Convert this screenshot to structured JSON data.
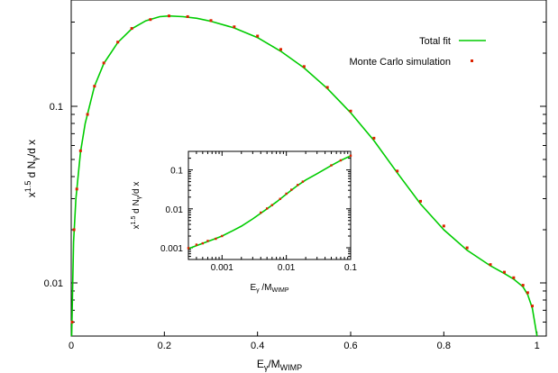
{
  "chart_data": [
    {
      "type": "line",
      "xlabel": "E",
      "xlabel_sub": "γ",
      "xlabel_rest": "/M",
      "xlabel_sub2": "WIMP",
      "ylabel_html": "x^1.5 d N_γ/d x",
      "ylabel_parts": [
        "x",
        "1.5",
        " d N",
        "γ",
        "/d x"
      ],
      "xscale": "linear",
      "yscale": "log",
      "xlim": [
        0,
        1.02
      ],
      "ylim": [
        0.005,
        0.4
      ],
      "xticks": [
        0,
        0.2,
        0.4,
        0.6,
        0.8,
        1
      ],
      "xtick_labels": [
        "0",
        "0.2",
        "0.4",
        "0.6",
        "0.8",
        "1"
      ],
      "yticks": [
        0.01,
        0.1
      ],
      "ytick_labels": [
        "0.01",
        "0.1"
      ],
      "legend_position": "top-right",
      "series": [
        {
          "name": "Total fit",
          "style": "line",
          "color": "#00cc00",
          "x": [
            0.001,
            0.005,
            0.01,
            0.02,
            0.03,
            0.05,
            0.07,
            0.1,
            0.13,
            0.16,
            0.19,
            0.21,
            0.24,
            0.27,
            0.3,
            0.35,
            0.4,
            0.45,
            0.5,
            0.55,
            0.6,
            0.65,
            0.7,
            0.75,
            0.8,
            0.85,
            0.9,
            0.93,
            0.95,
            0.97,
            0.98,
            0.99,
            0.995,
            1.0
          ],
          "y": [
            0.005,
            0.017,
            0.03,
            0.055,
            0.08,
            0.13,
            0.175,
            0.23,
            0.275,
            0.305,
            0.322,
            0.325,
            0.322,
            0.315,
            0.303,
            0.278,
            0.245,
            0.205,
            0.165,
            0.126,
            0.092,
            0.064,
            0.042,
            0.028,
            0.02,
            0.0153,
            0.0125,
            0.0113,
            0.0105,
            0.0095,
            0.0086,
            0.0072,
            0.006,
            0.005
          ]
        },
        {
          "name": "Monte Carlo simulation",
          "style": "points",
          "color": "#dd2200",
          "x": [
            0.002,
            0.006,
            0.012,
            0.02,
            0.035,
            0.05,
            0.07,
            0.1,
            0.13,
            0.17,
            0.21,
            0.25,
            0.3,
            0.35,
            0.4,
            0.45,
            0.5,
            0.55,
            0.6,
            0.65,
            0.7,
            0.75,
            0.8,
            0.85,
            0.9,
            0.93,
            0.95,
            0.97,
            0.98,
            0.99
          ],
          "y": [
            0.006,
            0.02,
            0.034,
            0.056,
            0.09,
            0.13,
            0.176,
            0.231,
            0.276,
            0.31,
            0.325,
            0.322,
            0.306,
            0.282,
            0.25,
            0.21,
            0.168,
            0.128,
            0.094,
            0.066,
            0.043,
            0.029,
            0.021,
            0.0158,
            0.0127,
            0.0115,
            0.0107,
            0.0097,
            0.0088,
            0.0074
          ]
        }
      ]
    },
    {
      "type": "line",
      "inset": true,
      "xlabel_parts": [
        "E",
        "γ",
        " /M",
        "WIMP"
      ],
      "ylabel_parts": [
        "x",
        "1.5",
        " d N",
        "γ",
        "/d x"
      ],
      "xscale": "log",
      "yscale": "log",
      "xlim": [
        0.0003,
        0.1
      ],
      "ylim": [
        0.0005,
        0.3
      ],
      "xticks": [
        0.001,
        0.01,
        0.1
      ],
      "xtick_labels": [
        "0.001",
        "0.01",
        "0.1"
      ],
      "yticks": [
        0.001,
        0.01,
        0.1
      ],
      "ytick_labels": [
        "0.001",
        "0.01",
        "0.1"
      ],
      "series": [
        {
          "name": "Total fit",
          "style": "line",
          "color": "#00cc00",
          "x": [
            0.0003,
            0.0005,
            0.0007,
            0.001,
            0.0015,
            0.002,
            0.003,
            0.005,
            0.007,
            0.01,
            0.015,
            0.02,
            0.03,
            0.05,
            0.07,
            0.1
          ],
          "y": [
            0.00095,
            0.0013,
            0.0016,
            0.002,
            0.0028,
            0.0036,
            0.0055,
            0.01,
            0.015,
            0.024,
            0.04,
            0.055,
            0.08,
            0.13,
            0.175,
            0.23
          ]
        },
        {
          "name": "Monte Carlo simulation",
          "style": "points",
          "color": "#dd2200",
          "x": [
            0.0003,
            0.0004,
            0.0005,
            0.0006,
            0.0008,
            0.001,
            0.004,
            0.005,
            0.006,
            0.008,
            0.01,
            0.012,
            0.015,
            0.018,
            0.05,
            0.07,
            0.1
          ],
          "y": [
            0.00098,
            0.0012,
            0.0013,
            0.0015,
            0.0017,
            0.002,
            0.008,
            0.0102,
            0.0125,
            0.018,
            0.0245,
            0.031,
            0.041,
            0.05,
            0.131,
            0.176,
            0.232
          ]
        }
      ]
    }
  ]
}
